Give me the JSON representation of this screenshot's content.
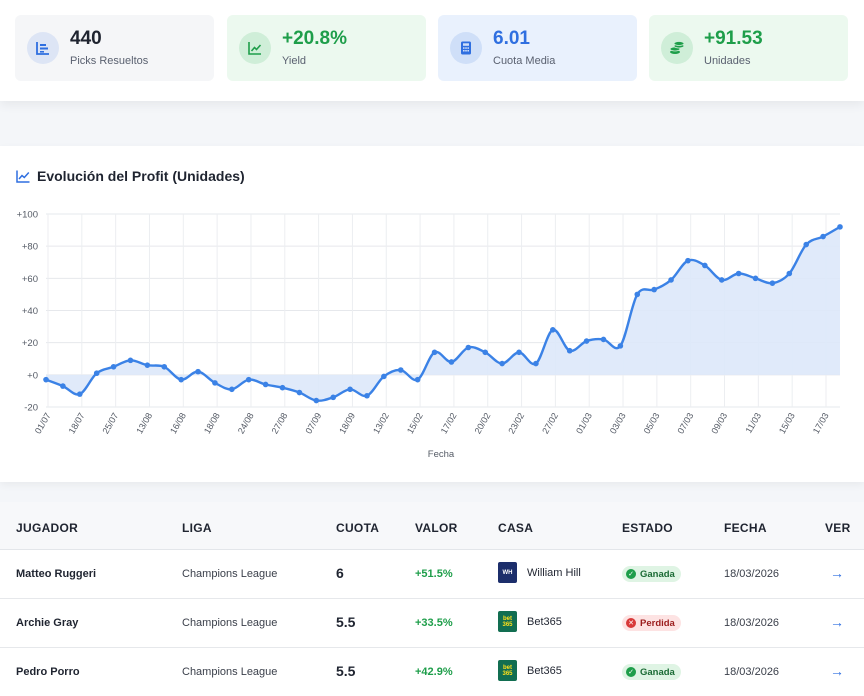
{
  "stats": [
    {
      "value": "440",
      "label": "Picks Resueltos",
      "icon": "list-chart-icon",
      "color": "#1f2430"
    },
    {
      "value": "+20.8%",
      "label": "Yield",
      "icon": "trend-icon",
      "color": "#1e9e4a"
    },
    {
      "value": "6.01",
      "label": "Cuota Media",
      "icon": "calculator-icon",
      "color": "#2f6fe0"
    },
    {
      "value": "+91.53",
      "label": "Unidades",
      "icon": "coins-icon",
      "color": "#1e9e4a"
    }
  ],
  "chart": {
    "title": "Evolución del Profit (Unidades)"
  },
  "chart_data": {
    "type": "area",
    "title": "Evolución del Profit (Unidades)",
    "xlabel": "Fecha",
    "ylabel": "",
    "ylim": [
      -20,
      100
    ],
    "yticks": [
      "+100",
      "+80",
      "+60",
      "+40",
      "+20",
      "+0",
      "-20"
    ],
    "ytick_values": [
      100,
      80,
      60,
      40,
      20,
      0,
      -20
    ],
    "xticks": [
      "01/07",
      "18/07",
      "25/07",
      "13/08",
      "16/08",
      "18/08",
      "24/08",
      "27/08",
      "07/09",
      "18/09",
      "13/02",
      "15/02",
      "17/02",
      "20/02",
      "23/02",
      "27/02",
      "01/03",
      "03/03",
      "05/03",
      "07/03",
      "09/03",
      "11/03",
      "15/03",
      "17/03"
    ],
    "values": [
      -3,
      -7,
      -12,
      1,
      5,
      9,
      6,
      5,
      -3,
      2,
      -5,
      -9,
      -3,
      -6,
      -8,
      -11,
      -16,
      -14,
      -9,
      -13,
      -1,
      3,
      -3,
      14,
      8,
      17,
      14,
      7,
      14,
      7,
      28,
      15,
      21,
      22,
      18,
      50,
      53,
      59,
      71,
      68,
      59,
      63,
      60,
      57,
      63,
      81,
      86,
      92
    ],
    "line_color": "#3b82e6",
    "fill_color": "#dde8fa",
    "grid": true
  },
  "table": {
    "headers": [
      "JUGADOR",
      "LIGA",
      "CUOTA",
      "VALOR",
      "CASA",
      "ESTADO",
      "FECHA",
      "VER"
    ],
    "rows": [
      {
        "player": "Matteo Ruggeri",
        "league": "Champions League",
        "odds": "6",
        "value": "+51.5%",
        "book": "William Hill",
        "book_logo": "WH",
        "status": "Ganada",
        "date": "18/03/2026",
        "view": "→"
      },
      {
        "player": "Archie Gray",
        "league": "Champions League",
        "odds": "5.5",
        "value": "+33.5%",
        "book": "Bet365",
        "book_logo": "bet365",
        "status": "Perdida",
        "date": "18/03/2026",
        "view": "→"
      },
      {
        "player": "Pedro Porro",
        "league": "Champions League",
        "odds": "5.5",
        "value": "+42.9%",
        "book": "Bet365",
        "book_logo": "bet365",
        "status": "Ganada",
        "date": "18/03/2026",
        "view": "→"
      }
    ]
  }
}
